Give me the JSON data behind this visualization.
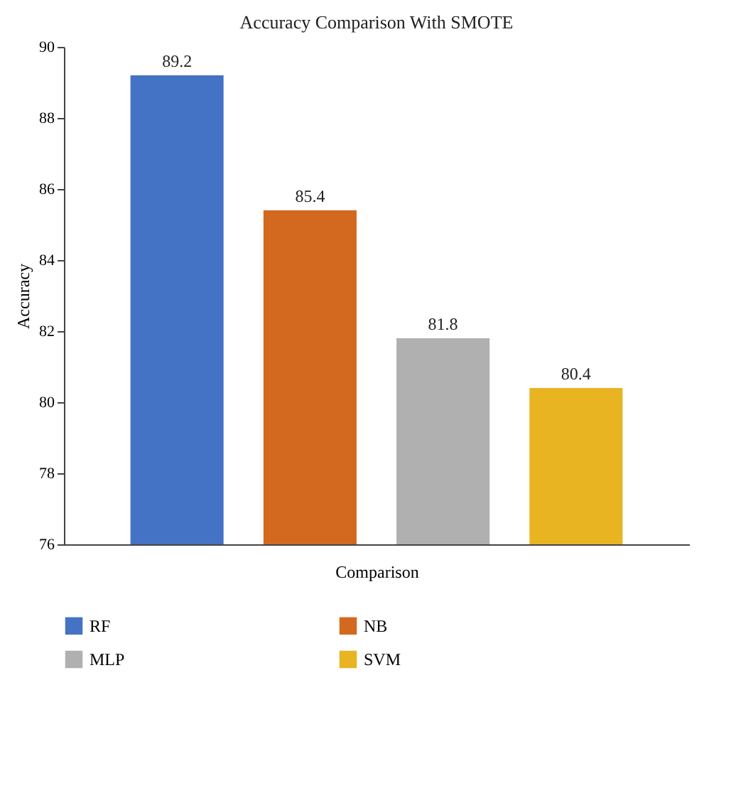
{
  "chart_data": {
    "type": "bar",
    "title": "Accuracy Comparison With SMOTE",
    "xlabel": "Comparison",
    "ylabel": "Accuracy",
    "categories": [
      null
    ],
    "series": [
      {
        "name": "RF",
        "color": "#4472c4",
        "values": [
          89.2
        ]
      },
      {
        "name": "NB",
        "color": "#d2691e",
        "values": [
          85.4
        ]
      },
      {
        "name": "MLP",
        "color": "#b0b0b0",
        "values": [
          81.8
        ]
      },
      {
        "name": "SVM",
        "color": "#e8b421",
        "values": [
          80.4
        ]
      }
    ],
    "ylim": [
      76,
      90
    ],
    "yticks": [
      76,
      78,
      80,
      82,
      84,
      86,
      88,
      90
    ],
    "grid": false,
    "legend": "bottom",
    "data_labels": true
  }
}
